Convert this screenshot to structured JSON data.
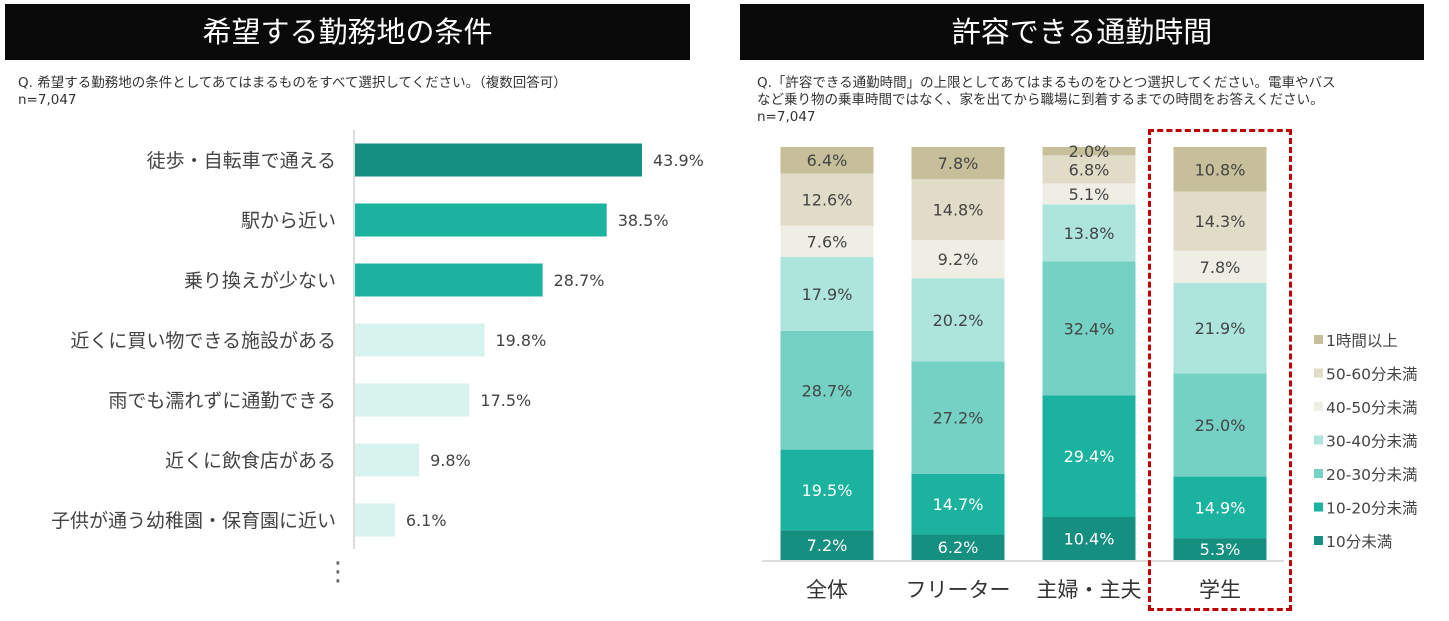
{
  "left": {
    "title": "希望する勤務地の条件",
    "question": "Q. 希望する勤務地の条件としてあてはまるものをすべて選択してください。（複数回答可）\nn=7,047",
    "more_indicator": "⋮"
  },
  "right": {
    "title": "許容できる通勤時間",
    "question": "Q.「許容できる通勤時間」の上限としてあてはまるものをひとつ選択してください。電車やバス\nなど乗り物の乗車時間ではなく、家を出てから職場に到着するまでの時間をお答えください。\nn=7,047"
  },
  "chart_data": [
    {
      "type": "bar",
      "orientation": "horizontal",
      "categories": [
        "徒歩・自転車で通える",
        "駅から近い",
        "乗り換えが少ない",
        "近くに買い物できる施設がある",
        "雨でも濡れずに通勤できる",
        "近くに飲食店がある",
        "子供が通う幼稚園・保育園に近い"
      ],
      "values": [
        43.9,
        38.5,
        28.7,
        19.8,
        17.5,
        9.8,
        6.1
      ],
      "value_labels": [
        "43.9%",
        "38.5%",
        "28.7%",
        "19.8%",
        "17.5%",
        "9.8%",
        "6.1%"
      ],
      "colors": [
        "#158f80",
        "#1bb39f",
        "#1bb39f",
        "#d8f2ee",
        "#d8f2ee",
        "#d8f2ee",
        "#d8f2ee"
      ],
      "xlim": [
        0,
        50
      ]
    },
    {
      "type": "bar",
      "stacked": true,
      "percent_stacked": true,
      "categories": [
        "全体",
        "フリーター",
        "主婦・主夫",
        "学生"
      ],
      "highlighted_category": "学生",
      "series": [
        {
          "name": "10分未満",
          "color": "#158f80",
          "values": [
            7.2,
            6.2,
            10.4,
            5.3
          ],
          "labels": [
            "7.2%",
            "6.2%",
            "10.4%",
            "5.3%"
          ]
        },
        {
          "name": "10-20分未満",
          "color": "#1bb39f",
          "values": [
            19.5,
            14.7,
            29.4,
            14.9
          ],
          "labels": [
            "19.5%",
            "14.7%",
            "29.4%",
            "14.9%"
          ]
        },
        {
          "name": "20-30分未満",
          "color": "#74d1c4",
          "values": [
            28.7,
            27.2,
            32.4,
            25.0
          ],
          "labels": [
            "28.7%",
            "27.2%",
            "32.4%",
            "25.0%"
          ]
        },
        {
          "name": "30-40分未満",
          "color": "#ade5dd",
          "values": [
            17.9,
            20.2,
            13.8,
            21.9
          ],
          "labels": [
            "17.9%",
            "20.2%",
            "13.8%",
            "21.9%"
          ]
        },
        {
          "name": "40-50分未満",
          "color": "#efeee5",
          "values": [
            7.6,
            9.2,
            5.1,
            7.8
          ],
          "labels": [
            "7.6%",
            "9.2%",
            "5.1%",
            "7.8%"
          ]
        },
        {
          "name": "50-60分未満",
          "color": "#e0dcc8",
          "values": [
            12.6,
            14.8,
            6.8,
            14.3
          ],
          "labels": [
            "12.6%",
            "14.8%",
            "6.8%",
            "14.3%"
          ]
        },
        {
          "name": "1時間以上",
          "color": "#c6bf9a",
          "values": [
            6.4,
            7.8,
            2.0,
            10.8
          ],
          "labels": [
            "6.4%",
            "7.8%",
            "2.0%",
            "10.8%"
          ]
        }
      ],
      "legend_position": "right",
      "ylim": [
        0,
        100
      ]
    }
  ]
}
